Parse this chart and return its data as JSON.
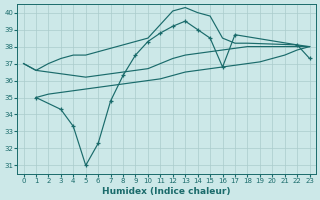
{
  "xlabel": "Humidex (Indice chaleur)",
  "bg_color": "#cce8e8",
  "line_color": "#1a6b6b",
  "grid_color": "#aacccc",
  "xlim": [
    -0.5,
    23.5
  ],
  "ylim": [
    30.5,
    40.5
  ],
  "yticks": [
    31,
    32,
    33,
    34,
    35,
    36,
    37,
    38,
    39,
    40
  ],
  "xticks": [
    0,
    1,
    2,
    3,
    4,
    5,
    6,
    7,
    8,
    9,
    10,
    11,
    12,
    13,
    14,
    15,
    16,
    17,
    18,
    19,
    20,
    21,
    22,
    23
  ],
  "line1_x": [
    0,
    1,
    2,
    3,
    4,
    5,
    6,
    7,
    8,
    9,
    10,
    11,
    12,
    13,
    14,
    15,
    16,
    17,
    18,
    22,
    23
  ],
  "line1_y": [
    37.0,
    36.6,
    37.0,
    37.3,
    37.5,
    37.5,
    37.7,
    37.9,
    38.1,
    38.3,
    38.5,
    39.3,
    40.1,
    40.3,
    40.0,
    39.8,
    38.5,
    38.2,
    38.2,
    38.1,
    38.0
  ],
  "line2_x": [
    0,
    1,
    2,
    3,
    4,
    5,
    6,
    7,
    8,
    9,
    10,
    11,
    12,
    13,
    14,
    15,
    16,
    17,
    18,
    19,
    20,
    21,
    22,
    23
  ],
  "line2_y": [
    37.0,
    36.6,
    36.5,
    36.4,
    36.3,
    36.2,
    36.3,
    36.4,
    36.5,
    36.6,
    36.7,
    37.0,
    37.3,
    37.5,
    37.6,
    37.7,
    37.8,
    37.9,
    38.0,
    38.0,
    38.0,
    38.0,
    38.0,
    38.0
  ],
  "line3_x": [
    1,
    2,
    3,
    4,
    5,
    6,
    7,
    8,
    9,
    10,
    11,
    12,
    13,
    14,
    15,
    16,
    17,
    18,
    19,
    20,
    21,
    22,
    23
  ],
  "line3_y": [
    35.0,
    35.2,
    35.3,
    35.4,
    35.5,
    35.6,
    35.7,
    35.8,
    35.9,
    36.0,
    36.1,
    36.3,
    36.5,
    36.6,
    36.7,
    36.8,
    36.9,
    37.0,
    37.1,
    37.3,
    37.5,
    37.8,
    38.0
  ],
  "line4_x": [
    1,
    3,
    4,
    5,
    6,
    7,
    8,
    9,
    10,
    11,
    12,
    13,
    14,
    15,
    16,
    17,
    22,
    23
  ],
  "line4_y": [
    35.0,
    34.3,
    33.3,
    31.0,
    32.3,
    34.8,
    36.3,
    37.5,
    38.3,
    38.8,
    39.2,
    39.5,
    39.0,
    38.5,
    36.8,
    38.7,
    38.1,
    37.3
  ]
}
